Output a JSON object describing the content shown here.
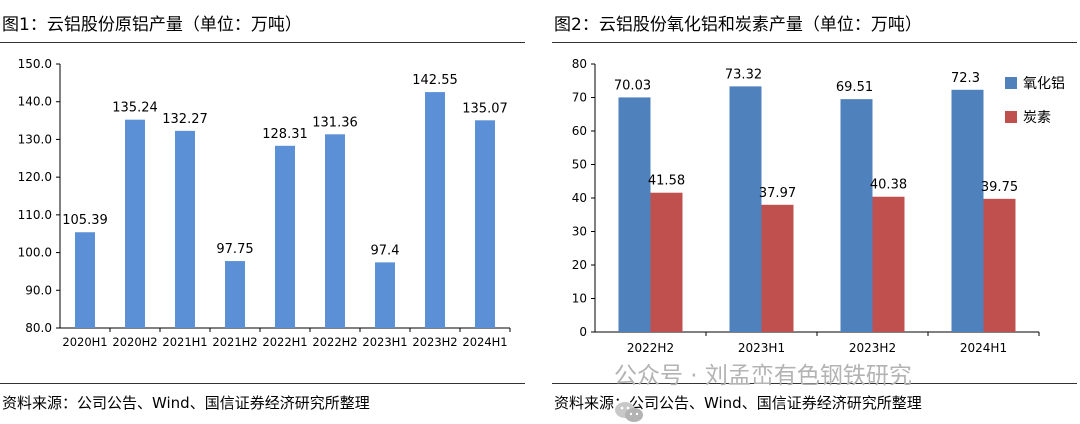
{
  "left": {
    "title": "图1：云铝股份原铝产量（单位：万吨）",
    "source": "资料来源：公司公告、Wind、国信证券经济研究所整理"
  },
  "right": {
    "title": "图2：云铝股份氧化铝和炭素产量（单位：万吨）",
    "source": "资料来源：公司公告、Wind、国信证券经济研究所整理"
  },
  "watermark": {
    "text": "公众号 · 刘孟峦有色钢铁研究",
    "icon": "wechat-icon"
  },
  "colors": {
    "blue": "#5b8fd6",
    "red": "#c0504d",
    "axis": "#000000"
  },
  "chart_data": [
    {
      "type": "bar",
      "categories": [
        "2020H1",
        "2020H2",
        "2021H1",
        "2021H2",
        "2022H1",
        "2022H2",
        "2023H1",
        "2023H2",
        "2024H1"
      ],
      "values": [
        105.39,
        135.24,
        132.27,
        97.75,
        128.31,
        131.36,
        97.4,
        142.55,
        135.07
      ],
      "value_labels": [
        "105.39",
        "135.24",
        "132.27",
        "97.75",
        "128.31",
        "131.36",
        "97.4",
        "142.55",
        "135.07"
      ],
      "ylim": [
        80,
        150
      ],
      "yticks": [
        80,
        90,
        100,
        110,
        120,
        130,
        140,
        150
      ],
      "ytick_labels": [
        "80.0",
        "90.0",
        "100.0",
        "110.0",
        "120.0",
        "130.0",
        "140.0",
        "150.0"
      ],
      "grid": false,
      "legend": "none"
    },
    {
      "type": "bar",
      "categories": [
        "2022H2",
        "2023H1",
        "2023H2",
        "2024H1"
      ],
      "series": [
        {
          "name": "氧化铝",
          "values": [
            70.03,
            73.32,
            69.51,
            72.3
          ],
          "value_labels": [
            "70.03",
            "73.32",
            "69.51",
            "72.3"
          ],
          "color": "#4f81bd"
        },
        {
          "name": "炭素",
          "values": [
            41.58,
            37.97,
            40.38,
            39.75
          ],
          "value_labels": [
            "41.58",
            "37.97",
            "40.38",
            "39.75"
          ],
          "color": "#c0504d"
        }
      ],
      "ylim": [
        0,
        80
      ],
      "yticks": [
        0,
        10,
        20,
        30,
        40,
        50,
        60,
        70,
        80
      ],
      "ytick_labels": [
        "0",
        "10",
        "20",
        "30",
        "40",
        "50",
        "60",
        "70",
        "80"
      ],
      "grid": false,
      "legend": "right"
    }
  ]
}
